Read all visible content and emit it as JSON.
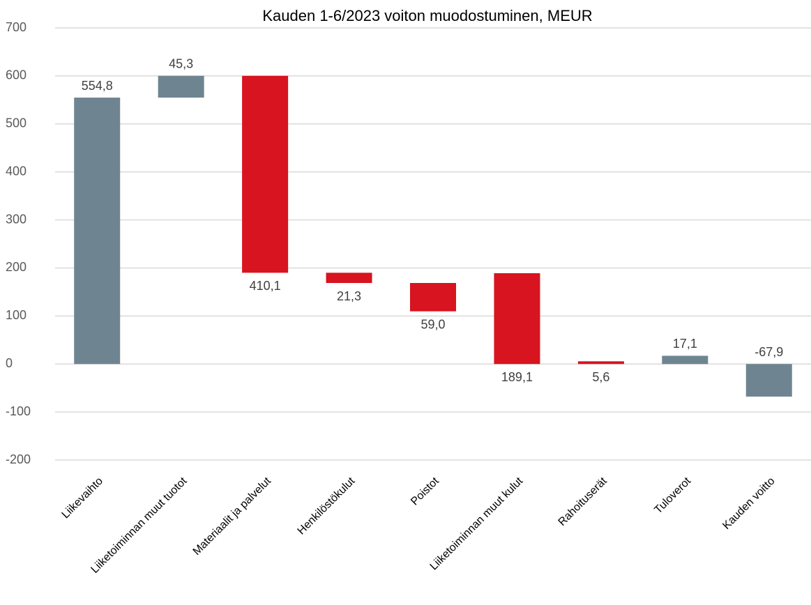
{
  "chart_data": {
    "type": "waterfall",
    "title": "Kauden 1-6/2023 voiton muodostuminen,  MEUR",
    "categories": [
      "Liikevaihto",
      "Liiketoiminnan muut tuotot",
      "Materiaalit ja palvelut",
      "Henkilöstökulut",
      "Poistot",
      "Liiketoiminnan muut kulut",
      "Rahoituserät",
      "Tuloverot",
      "Kauden voitto"
    ],
    "values": [
      554.8,
      45.3,
      410.1,
      21.3,
      59.0,
      189.1,
      5.6,
      17.1,
      -67.9
    ],
    "value_labels": [
      "554,8",
      "45,3",
      "410,1",
      "21,3",
      "59,0",
      "189,1",
      "5,6",
      "17,1",
      "-67,9"
    ],
    "colors": [
      "#6e8591",
      "#6e8591",
      "#d7141f",
      "#d7141f",
      "#d7141f",
      "#d7141f",
      "#d7141f",
      "#6e8591",
      "#6e8591"
    ],
    "floating": [
      true,
      true,
      true,
      true,
      true,
      false,
      false,
      false,
      false
    ],
    "decrease_color": "#d7141f",
    "ylim": [
      -200,
      700
    ],
    "yticks": [
      -200,
      -100,
      0,
      100,
      200,
      300,
      400,
      500,
      600,
      700
    ],
    "grid": true
  }
}
